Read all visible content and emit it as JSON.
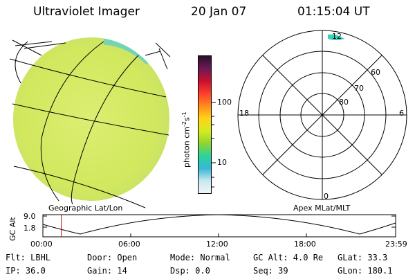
{
  "header": {
    "instrument": "Ultraviolet Imager",
    "date": "20 Jan 07",
    "time": "01:15:04 UT"
  },
  "colorbar": {
    "unit": "photon cm",
    "exp1": "-2",
    "mid": "s",
    "exp2": "-1",
    "ticks": [
      "100",
      "10"
    ],
    "colors": [
      "#2b0f2a",
      "#6b1b55",
      "#c8102e",
      "#ff3d2e",
      "#ff8c1a",
      "#ffd21a",
      "#d6ec1f",
      "#8fd52f",
      "#2ed39a",
      "#36b7d8",
      "#c7e8ef",
      "#eef6f8"
    ]
  },
  "left_image": {
    "label": "Geographic Lat/Lon",
    "fill_color": "#d8ec6a"
  },
  "polar_plot": {
    "label": "Apex MLat/MLT",
    "mlt_labels": {
      "top": "12",
      "left": "18",
      "right": "6",
      "bottom": "0"
    },
    "lat_labels": [
      "60",
      "70",
      "80"
    ]
  },
  "altitude_plot": {
    "ylabel": "GC Alt",
    "ytick_high": "9.0",
    "ytick_low": "1.8",
    "xticks": [
      "00:00",
      "06:00",
      "12:00",
      "18:00",
      "23:59"
    ],
    "current_time_fraction": 0.052,
    "current_marker_color": "#d01010"
  },
  "info": {
    "filter": "Flt: LBHL",
    "ip": "IP: 36.0",
    "door": "Door: Open",
    "gain": "Gain: 14",
    "mode": "Mode: Normal",
    "dsp": "Dsp:     0.0",
    "gc_alt": "GC Alt: 4.0 Re",
    "seq": "Seq: 39",
    "glat": "GLat:  33.3",
    "glon": "GLon: 180.1"
  }
}
